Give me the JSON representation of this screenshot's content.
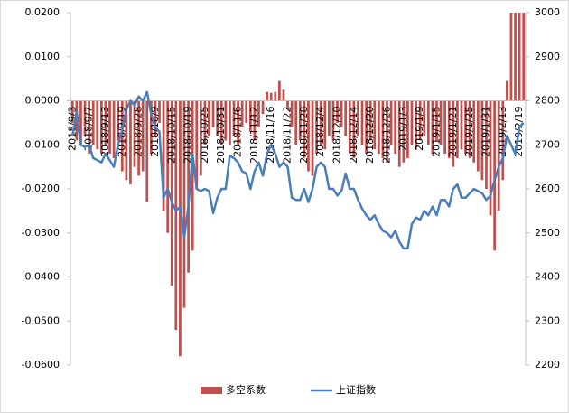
{
  "chart_data": {
    "type": "bar-line",
    "categories": [
      "2018/9/3",
      null,
      null,
      null,
      "2018/9/7",
      null,
      null,
      null,
      "2018/9/13",
      null,
      null,
      null,
      "2018/9/19",
      null,
      null,
      null,
      "2018/9/28",
      null,
      null,
      null,
      "2018/10/9",
      null,
      null,
      null,
      "2018/10/15",
      null,
      null,
      null,
      "2018/10/19",
      null,
      null,
      null,
      "2018/10/25",
      null,
      null,
      null,
      "2018/10/31",
      null,
      null,
      null,
      "2018/11/6",
      null,
      null,
      null,
      "2018/11/12",
      null,
      null,
      null,
      "2018/11/16",
      null,
      null,
      null,
      "2018/11/22",
      null,
      null,
      null,
      "2018/11/28",
      null,
      null,
      null,
      "2018/12/4",
      null,
      null,
      null,
      "2018/12/10",
      null,
      null,
      null,
      "2018/12/14",
      null,
      null,
      null,
      "2018/12/20",
      null,
      null,
      null,
      "2018/12/26",
      null,
      null,
      null,
      "2019/1/3",
      null,
      null,
      null,
      "2019/1/9",
      null,
      null,
      null,
      "2019/1/15",
      null,
      null,
      null,
      "2019/1/21",
      null,
      null,
      null,
      "2019/1/25",
      null,
      null,
      null,
      "2019/1/31",
      null,
      null,
      null,
      "2019/2/13",
      null,
      null,
      null,
      "2019/2/19",
      null
    ],
    "series": [
      {
        "name": "多空系数",
        "type": "bar",
        "color": "#c0504d",
        "axis": "y",
        "values": [
          -0.005,
          -0.009,
          -0.01,
          -0.008,
          -0.012,
          -0.01,
          -0.011,
          -0.012,
          -0.01,
          -0.012,
          -0.013,
          -0.009,
          -0.016,
          -0.018,
          -0.019,
          -0.015,
          -0.017,
          -0.016,
          -0.023,
          -0.012,
          -0.008,
          -0.005,
          -0.025,
          -0.03,
          -0.042,
          -0.052,
          -0.058,
          -0.047,
          -0.039,
          -0.034,
          -0.02,
          -0.017,
          -0.01,
          -0.008,
          -0.006,
          -0.008,
          -0.01,
          -0.009,
          -0.01,
          -0.008,
          -0.01,
          -0.006,
          -0.005,
          -0.007,
          -0.009,
          -0.006,
          -0.003,
          0.002,
          0.0018,
          0.002,
          0.0045,
          0.0025,
          -0.002,
          -0.006,
          -0.01,
          -0.009,
          -0.013,
          -0.016,
          -0.017,
          -0.012,
          -0.01,
          -0.011,
          -0.008,
          -0.009,
          -0.005,
          -0.006,
          -0.008,
          -0.012,
          -0.013,
          -0.008,
          -0.01,
          -0.012,
          -0.009,
          -0.011,
          -0.012,
          -0.013,
          -0.014,
          -0.01,
          -0.012,
          -0.015,
          -0.014,
          -0.013,
          -0.01,
          -0.011,
          -0.009,
          -0.008,
          -0.01,
          -0.012,
          -0.009,
          -0.01,
          -0.012,
          -0.013,
          -0.015,
          -0.013,
          -0.011,
          -0.012,
          -0.013,
          -0.014,
          -0.016,
          -0.018,
          -0.02,
          -0.026,
          -0.034,
          -0.025,
          -0.018,
          0.0045,
          0.02,
          0.02,
          0.02,
          0.02
        ]
      },
      {
        "name": "上证指数",
        "type": "line",
        "color": "#4a7ebb",
        "axis": "y2",
        "values": [
          2721,
          2775,
          2700,
          2695,
          2700,
          2670,
          2665,
          2660,
          2680,
          2665,
          2650,
          2700,
          2735,
          2780,
          2800,
          2790,
          2810,
          2800,
          2820,
          2770,
          2740,
          2730,
          2580,
          2600,
          2570,
          2550,
          2560,
          2490,
          2560,
          2680,
          2600,
          2595,
          2600,
          2595,
          2545,
          2580,
          2600,
          2600,
          2675,
          2670,
          2660,
          2640,
          2635,
          2600,
          2640,
          2660,
          2630,
          2680,
          2700,
          2680,
          2650,
          2660,
          2650,
          2580,
          2575,
          2575,
          2600,
          2570,
          2600,
          2650,
          2660,
          2650,
          2600,
          2600,
          2585,
          2595,
          2635,
          2600,
          2600,
          2575,
          2555,
          2540,
          2530,
          2540,
          2520,
          2505,
          2500,
          2490,
          2505,
          2480,
          2465,
          2465,
          2520,
          2535,
          2530,
          2550,
          2540,
          2560,
          2540,
          2575,
          2575,
          2560,
          2600,
          2610,
          2580,
          2580,
          2590,
          2600,
          2595,
          2590,
          2575,
          2585,
          2620,
          2650,
          2670,
          2720,
          2700,
          2680,
          2740,
          2750
        ]
      }
    ],
    "ylim": [
      -0.06,
      0.02
    ],
    "yticks": [
      {
        "value": -0.06,
        "label": "-0.0600"
      },
      {
        "value": -0.05,
        "label": "-0.0500"
      },
      {
        "value": -0.04,
        "label": "-0.0400"
      },
      {
        "value": -0.03,
        "label": "-0.0300"
      },
      {
        "value": -0.02,
        "label": "-0.0200"
      },
      {
        "value": -0.01,
        "label": "-0.0100"
      },
      {
        "value": 0,
        "label": "0.0000"
      },
      {
        "value": 0.01,
        "label": "0.0100"
      },
      {
        "value": 0.02,
        "label": "0.0200"
      }
    ],
    "y2lim": [
      2200,
      3000
    ],
    "y2ticks": [
      2200,
      2300,
      2400,
      2500,
      2600,
      2700,
      2800,
      2900,
      3000
    ],
    "legend": "bottom"
  }
}
